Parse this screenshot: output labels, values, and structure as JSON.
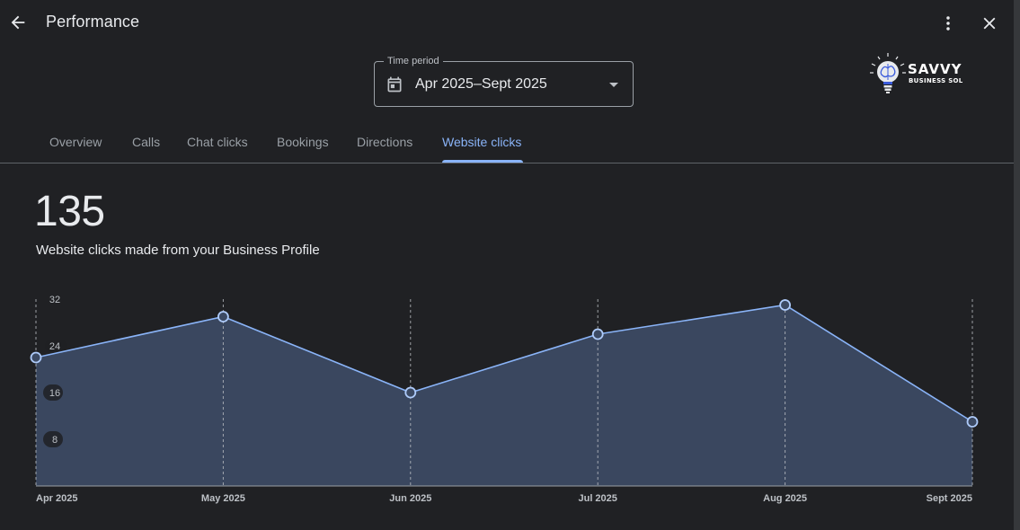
{
  "header": {
    "title": "Performance",
    "back_icon": "arrow-back-icon",
    "more_icon": "more-vert-icon",
    "close_icon": "close-icon"
  },
  "time_period": {
    "label": "Time period",
    "value": "Apr 2025–Sept 2025",
    "icon": "calendar-icon"
  },
  "logo": {
    "name": "SAVVY",
    "subtitle": "BUSINESS SOL"
  },
  "tabs": [
    {
      "label": "Overview",
      "active": false
    },
    {
      "label": "Calls",
      "active": false
    },
    {
      "label": "Chat clicks",
      "active": false
    },
    {
      "label": "Bookings",
      "active": false
    },
    {
      "label": "Directions",
      "active": false
    },
    {
      "label": "Website clicks",
      "active": true
    }
  ],
  "metric": {
    "value": "135",
    "description": "Website clicks made from your Business Profile"
  },
  "colors": {
    "background": "#202124",
    "accent": "#8ab4f8",
    "area_fill": "#3c4a63",
    "text": "#e8eaed"
  },
  "chart_data": {
    "type": "area",
    "x": [
      "Apr 2025",
      "May 2025",
      "Jun 2025",
      "Jul 2025",
      "Aug 2025",
      "Sept 2025"
    ],
    "series": [
      {
        "values": [
          22,
          29,
          16,
          26,
          31,
          11
        ]
      }
    ],
    "y_ticks": [
      8,
      16,
      24,
      32
    ],
    "ylim": [
      0,
      32
    ],
    "grid": "vertical dashed",
    "legend": "none"
  }
}
